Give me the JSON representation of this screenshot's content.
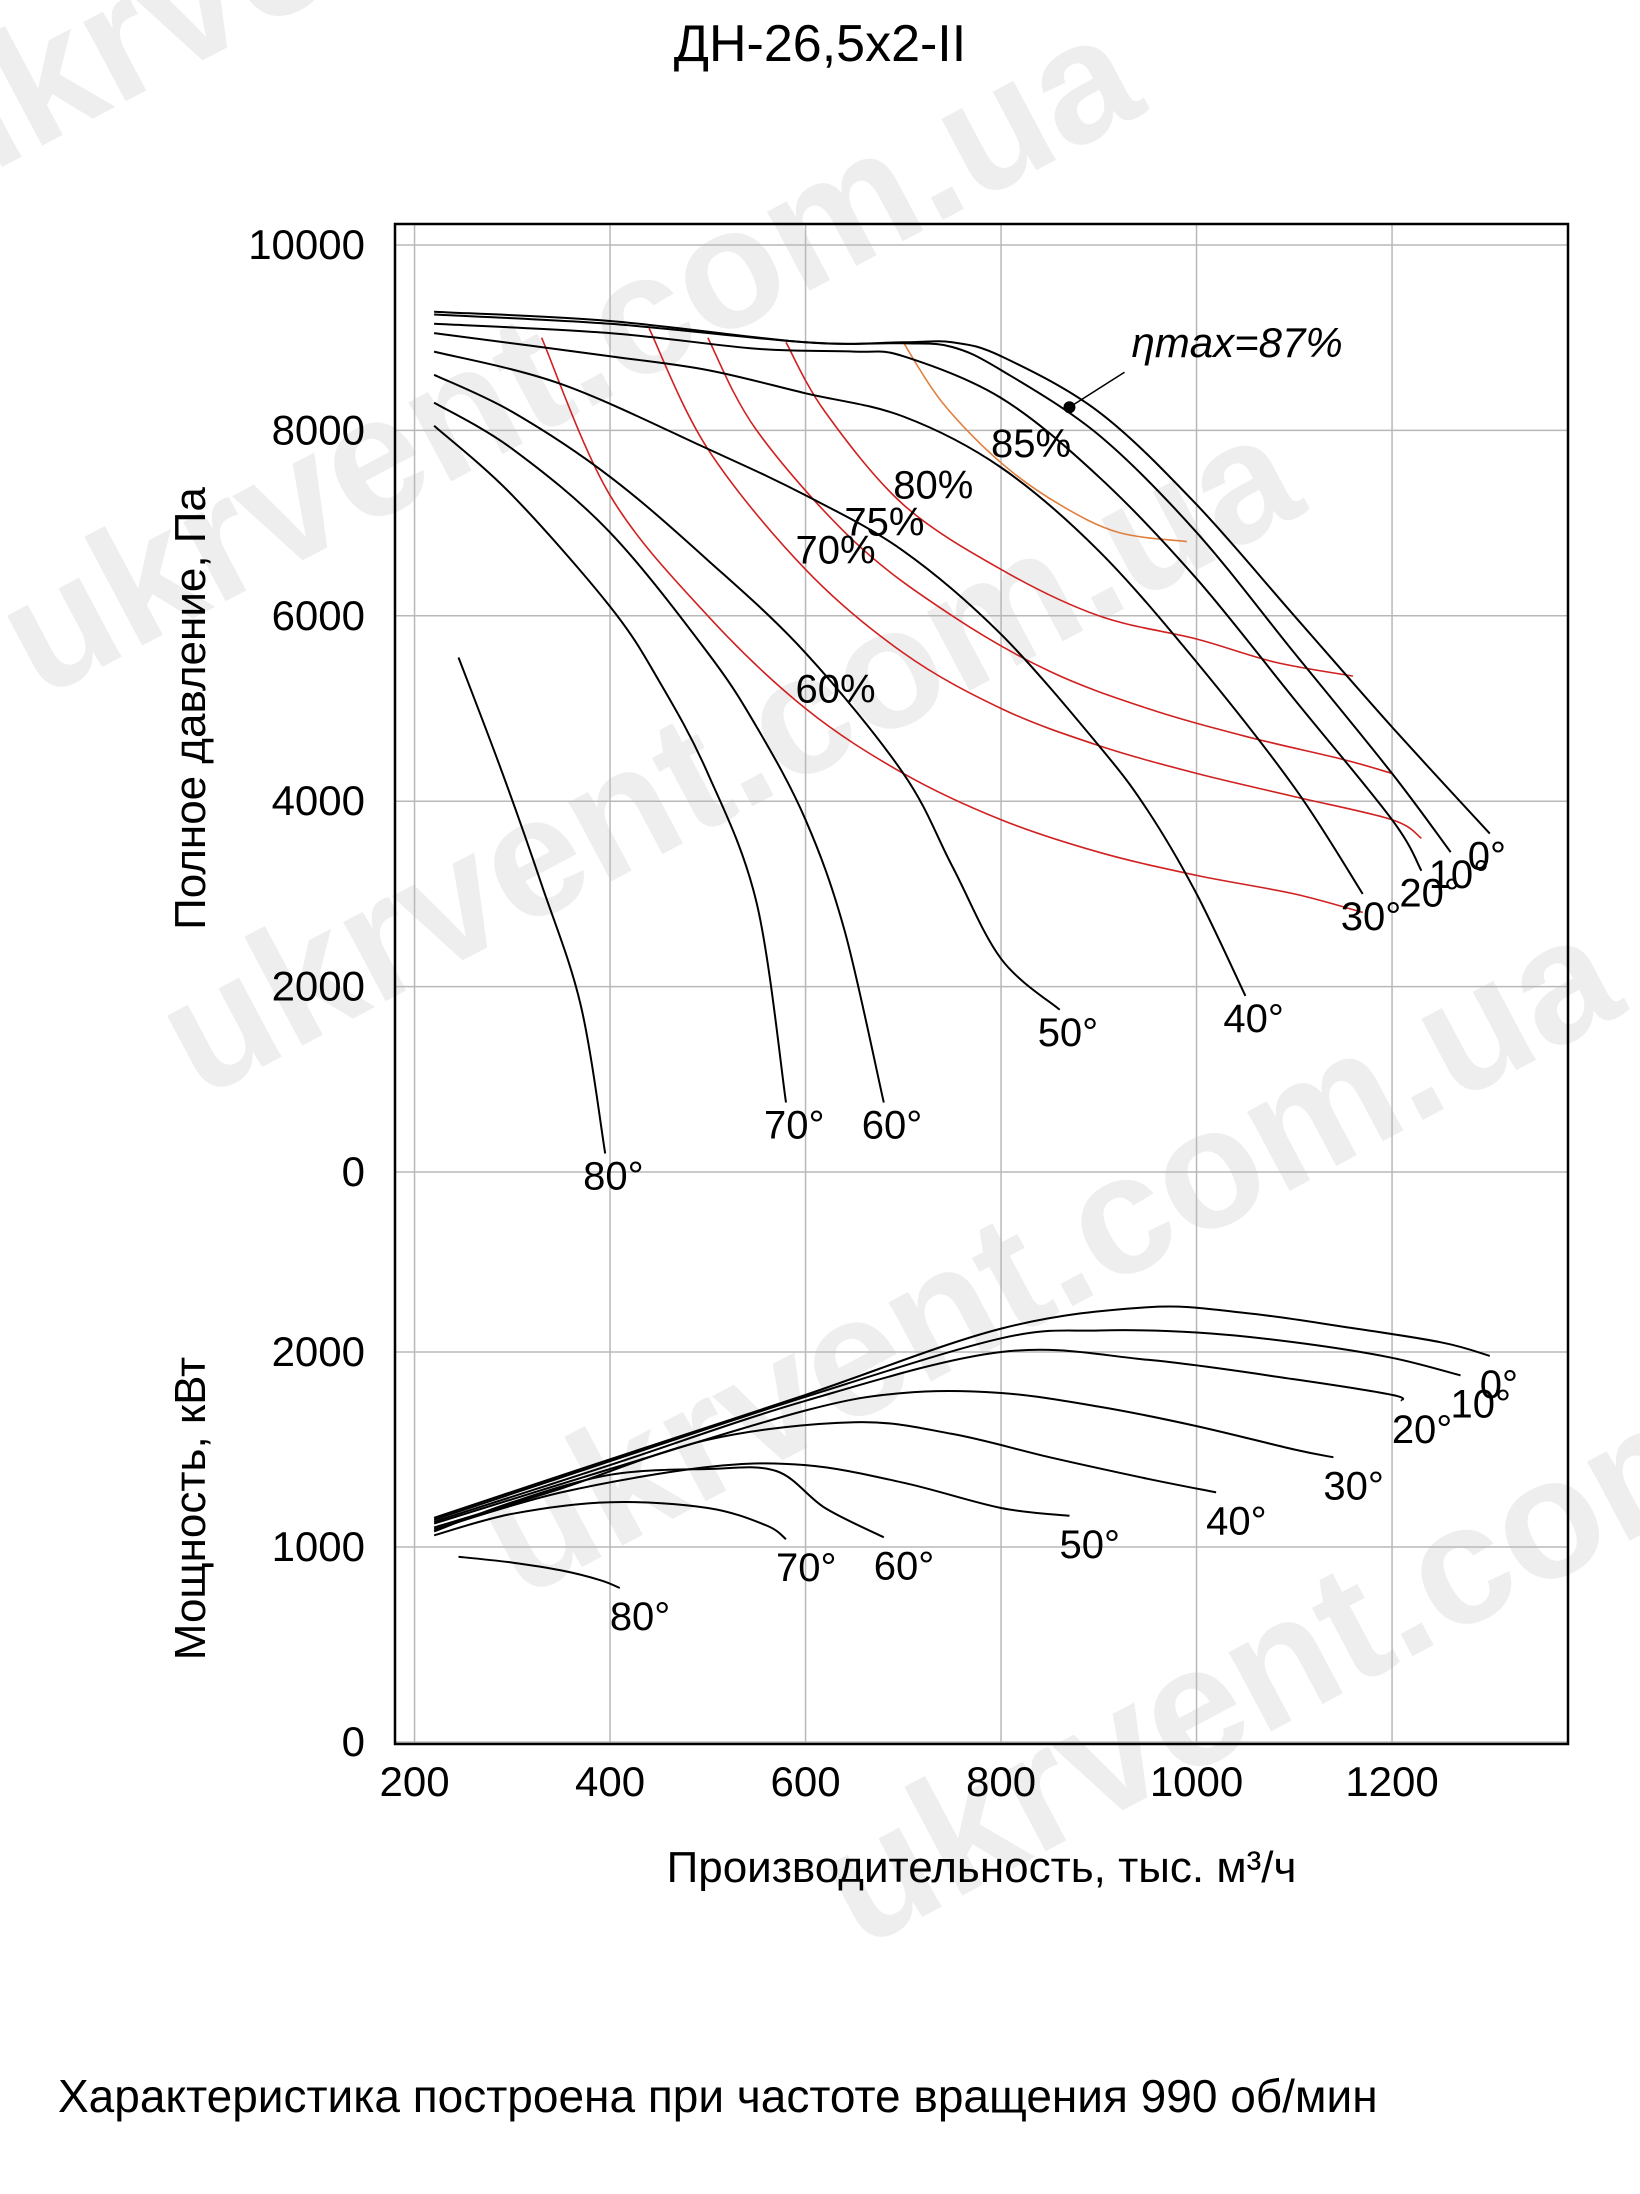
{
  "watermark": "ukrvent.com.ua",
  "chart_data": {
    "type": "line",
    "title": "ДН-26,5х2-II",
    "note": "Характеристика построена при частоте вращения 990 об/мин",
    "xlabel": "Производительность, тыс. м³/ч",
    "xlim": [
      180,
      1380
    ],
    "xticks": [
      200,
      400,
      600,
      800,
      1000,
      1200
    ],
    "grid": true,
    "pressure_panel": {
      "ylabel": "Полное давление, Па",
      "ylim": [
        0,
        10000
      ],
      "yticks": [
        0,
        2000,
        4000,
        6000,
        8000,
        10000
      ],
      "series": [
        {
          "name": "0°",
          "x": [
            220,
            400,
            600,
            700,
            750,
            800,
            900,
            1000,
            1100,
            1200,
            1300
          ],
          "y": [
            9280,
            9180,
            8950,
            8950,
            8950,
            8800,
            8200,
            7200,
            6000,
            4800,
            3650
          ]
        },
        {
          "name": "10°",
          "x": [
            220,
            400,
            600,
            700,
            750,
            800,
            900,
            1000,
            1100,
            1200,
            1260
          ],
          "y": [
            9250,
            9150,
            8950,
            8940,
            8900,
            8650,
            7950,
            6900,
            5600,
            4300,
            3450
          ]
        },
        {
          "name": "20°",
          "x": [
            220,
            400,
            550,
            650,
            700,
            800,
            900,
            1000,
            1100,
            1200,
            1230
          ],
          "y": [
            9150,
            9050,
            8880,
            8850,
            8800,
            8350,
            7500,
            6400,
            5100,
            3800,
            3250
          ]
        },
        {
          "name": "30°",
          "x": [
            220,
            400,
            500,
            600,
            700,
            800,
            900,
            1000,
            1100,
            1170
          ],
          "y": [
            9050,
            8800,
            8650,
            8400,
            8150,
            7600,
            6700,
            5500,
            4150,
            3000
          ]
        },
        {
          "name": "40°",
          "x": [
            220,
            350,
            500,
            600,
            700,
            800,
            900,
            950,
            1000,
            1050
          ],
          "y": [
            8850,
            8500,
            7800,
            7300,
            6700,
            5800,
            4600,
            3900,
            3000,
            1900
          ]
        },
        {
          "name": "50°",
          "x": [
            220,
            300,
            400,
            500,
            600,
            700,
            750,
            800,
            860
          ],
          "y": [
            8600,
            8200,
            7500,
            6600,
            5600,
            4300,
            3300,
            2300,
            1750
          ]
        },
        {
          "name": "60°",
          "x": [
            220,
            300,
            400,
            500,
            550,
            600,
            640,
            680
          ],
          "y": [
            8300,
            7800,
            6900,
            5600,
            4800,
            3800,
            2600,
            750
          ]
        },
        {
          "name": "70°",
          "x": [
            220,
            300,
            400,
            450,
            500,
            550,
            580
          ],
          "y": [
            8050,
            7300,
            6100,
            5300,
            4300,
            2900,
            750
          ]
        },
        {
          "name": "80°",
          "x": [
            245,
            290,
            330,
            370,
            395
          ],
          "y": [
            5550,
            4300,
            3100,
            1800,
            200
          ]
        }
      ],
      "efficiency_curves": [
        {
          "name": "60%",
          "x": [
            330,
            400,
            500,
            600,
            700,
            800,
            900,
            1000,
            1100,
            1170
          ],
          "y": [
            9000,
            7300,
            6000,
            5000,
            4300,
            3800,
            3450,
            3200,
            3000,
            2800
          ]
        },
        {
          "name": "70%",
          "x": [
            440,
            500,
            600,
            700,
            800,
            900,
            1000,
            1100,
            1200,
            1230
          ],
          "y": [
            9100,
            7800,
            6500,
            5600,
            5000,
            4600,
            4300,
            4050,
            3800,
            3600
          ]
        },
        {
          "name": "75%",
          "x": [
            500,
            550,
            650,
            750,
            850,
            950,
            1050,
            1150,
            1200
          ],
          "y": [
            9000,
            8000,
            6800,
            6000,
            5400,
            5000,
            4700,
            4450,
            4300
          ]
        },
        {
          "name": "80%",
          "x": [
            580,
            620,
            700,
            800,
            900,
            1000,
            1080,
            1160
          ],
          "y": [
            8950,
            8200,
            7200,
            6500,
            6000,
            5750,
            5500,
            5350
          ]
        },
        {
          "name": "85%",
          "x": [
            700,
            740,
            800,
            860,
            920,
            990
          ],
          "y": [
            8950,
            8300,
            7650,
            7200,
            6900,
            6800
          ]
        }
      ],
      "eta_max": {
        "label": "ηmax=87%",
        "x": 870,
        "y": 8250
      }
    },
    "power_panel": {
      "ylabel": "Мощность, кВт",
      "ylim": [
        0,
        2600
      ],
      "yticks": [
        0,
        1000,
        2000
      ],
      "series": [
        {
          "name": "0°",
          "x": [
            220,
            400,
            600,
            800,
            950,
            1050,
            1150,
            1250,
            1300
          ],
          "y": [
            1150,
            1450,
            1780,
            2120,
            2230,
            2200,
            2130,
            2050,
            1980
          ]
        },
        {
          "name": "10°",
          "x": [
            220,
            400,
            600,
            800,
            900,
            1000,
            1100,
            1200,
            1270
          ],
          "y": [
            1140,
            1440,
            1770,
            2070,
            2110,
            2100,
            2050,
            1970,
            1880
          ]
        },
        {
          "name": "20°",
          "x": [
            220,
            400,
            600,
            800,
            950,
            1100,
            1200,
            1210
          ],
          "y": [
            1130,
            1420,
            1750,
            2000,
            1960,
            1860,
            1780,
            1750
          ]
        },
        {
          "name": "30°",
          "x": [
            220,
            400,
            600,
            700,
            800,
            900,
            1000,
            1100,
            1140
          ],
          "y": [
            1120,
            1400,
            1700,
            1790,
            1790,
            1720,
            1620,
            1500,
            1460
          ]
        },
        {
          "name": "40°",
          "x": [
            220,
            350,
            500,
            650,
            750,
            850,
            950,
            1020
          ],
          "y": [
            1100,
            1300,
            1550,
            1640,
            1580,
            1460,
            1350,
            1280
          ]
        },
        {
          "name": "50°",
          "x": [
            220,
            350,
            500,
            600,
            700,
            800,
            870
          ],
          "y": [
            1090,
            1280,
            1410,
            1420,
            1330,
            1200,
            1160
          ]
        },
        {
          "name": "60°",
          "x": [
            220,
            300,
            400,
            500,
            570,
            620,
            680
          ],
          "y": [
            1080,
            1230,
            1370,
            1400,
            1390,
            1200,
            1050
          ]
        },
        {
          "name": "70°",
          "x": [
            220,
            300,
            400,
            500,
            560,
            580
          ],
          "y": [
            1060,
            1170,
            1230,
            1200,
            1110,
            1040
          ]
        },
        {
          "name": "80°",
          "x": [
            245,
            300,
            350,
            390,
            410
          ],
          "y": [
            950,
            920,
            880,
            830,
            790
          ]
        }
      ]
    }
  }
}
